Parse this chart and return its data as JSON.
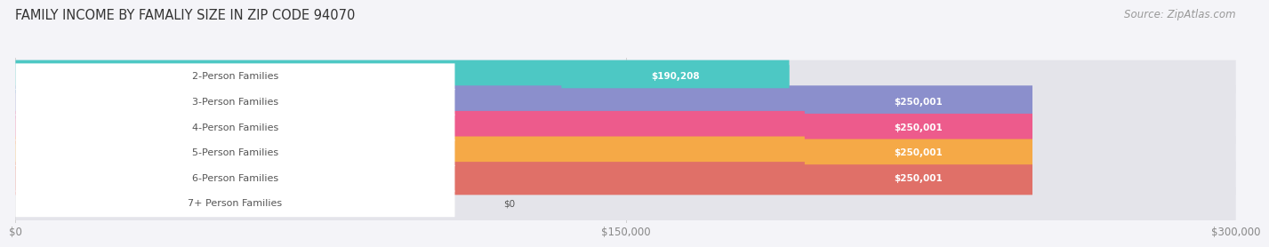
{
  "title": "FAMILY INCOME BY FAMALIY SIZE IN ZIP CODE 94070",
  "source": "Source: ZipAtlas.com",
  "categories": [
    "2-Person Families",
    "3-Person Families",
    "4-Person Families",
    "5-Person Families",
    "6-Person Families",
    "7+ Person Families"
  ],
  "values": [
    190208,
    250001,
    250001,
    250001,
    250001,
    0
  ],
  "bar_colors": [
    "#4dc8c4",
    "#8b8fcc",
    "#ed5b8c",
    "#f5a947",
    "#e07068",
    "#aabbd8"
  ],
  "bar_bg_color": "#e4e4ea",
  "value_labels": [
    "$190,208",
    "$250,001",
    "$250,001",
    "$250,001",
    "$250,001",
    "$0"
  ],
  "xlim": [
    0,
    300000
  ],
  "xticks": [
    0,
    150000,
    300000
  ],
  "xtick_labels": [
    "$0",
    "$150,000",
    "$300,000"
  ],
  "background_color": "#f4f4f8",
  "title_fontsize": 10.5,
  "source_fontsize": 8.5,
  "bar_height": 0.65,
  "label_fontsize": 8.0,
  "value_fontsize": 7.5
}
